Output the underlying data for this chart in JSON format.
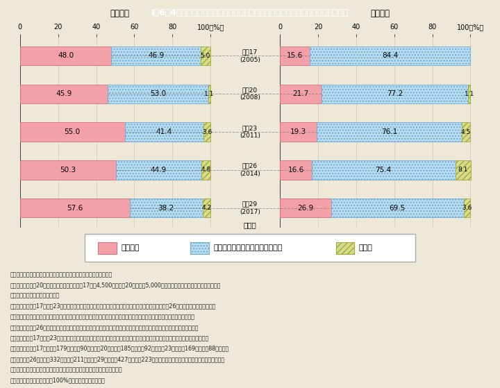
{
  "title": "I－6－4図　配偶者からの被害経験のある者のうち誰かに相談した者の割合の推移",
  "title_bg": "#29b5c8",
  "background": "#ede8d8",
  "years": [
    "平成17 (2005)",
    "平成20 (2008)",
    "平成23 (2011)",
    "平成26 (2014)",
    "平成29 (2017)"
  ],
  "female_label": "<女性>",
  "male_label": "<男性>",
  "female": {
    "consulted": [
      48.0,
      45.9,
      55.0,
      50.3,
      57.6
    ],
    "not_consulted": [
      46.9,
      53.0,
      41.4,
      44.9,
      38.2
    ],
    "no_answer": [
      5.0,
      1.1,
      3.6,
      4.8,
      4.2
    ]
  },
  "male": {
    "consulted": [
      15.6,
      21.7,
      19.3,
      16.6,
      26.9
    ],
    "not_consulted": [
      84.4,
      77.2,
      76.1,
      75.4,
      69.5
    ],
    "no_answer": [
      0.0,
      1.1,
      4.5,
      8.1,
      3.6
    ]
  },
  "color_consulted": "#f4a0a8",
  "color_not_consulted_face": "#b8ddf0",
  "color_not_consulted_edge": "#70aad0",
  "color_no_answer_face": "#d8dc88",
  "color_no_answer_edge": "#a0a840",
  "legend": [
    "相談した",
    "どこ（だれ）にも相談しなかった",
    "無回答"
  ],
  "notes": [
    "（備考）１．内閣府「男女間における暴力に関する調査」より作成。",
    "　　　　２．全国20歳以上の男女を対象（平成17年は4,500人，平成20年以降は5,000人）とした無作為抽出によるアンケート",
    "　　　　　　調査の結果による。",
    "　　　　３．平成17年から23年は「身体的暴行」，「心理的攻撃」及び「性的強要」のいずれか，平成26年以降は「身体的暴行」，",
    "　　　　　　「心理的攻撃」，「経済的圧迫」及び「性的強要」のいずれかの被害経験について誰かに相談した経験を調査。",
    "　　　　４．平成26年以降は，期間を区切らずに，配偶者から何らかの被害を受けたことがあった者について集計。また，平",
    "　　　　　　成17年から23年は，過去５年以内に配偶者から何らかの被害を受けたことがあった者について集計。集計対象者は，",
    "　　　　　　平成17年が女性179人，男性90人，平成20年が女性185人，男性92人，平成23年が女性169人，男性88人，平成",
    "　　　　　　26年が女性332人，男性211人。平成29年が女性427人，男性223人。前項３と合わせて，調査年により調査方法，",
    "　　　　　　設問内容等が異なることから，時系列比較には注意を要する。",
    "　　　　５．四捨五入により100%とならない場合がある。"
  ]
}
